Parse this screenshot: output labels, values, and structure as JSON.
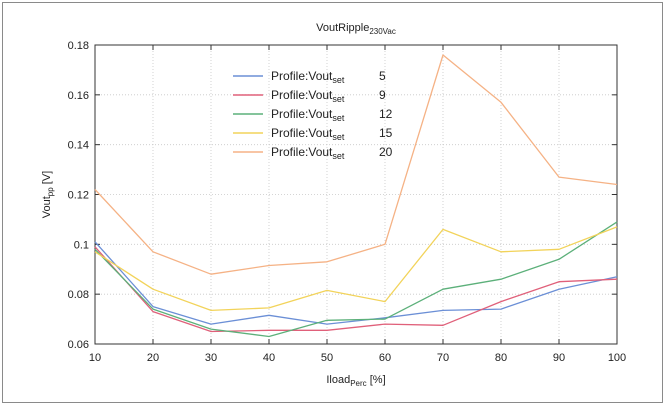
{
  "chart_data": {
    "type": "line",
    "title": {
      "main": "VoutRipple",
      "sub": "230Vac"
    },
    "xlabel": {
      "main": "Iload",
      "sub": "Perc",
      "suffix": " [%]"
    },
    "ylabel": {
      "main": "Vout",
      "sub": "pp",
      "suffix": " [V]"
    },
    "xlim": [
      10,
      100
    ],
    "ylim": [
      0.06,
      0.18
    ],
    "x": [
      10,
      20,
      30,
      40,
      50,
      60,
      70,
      80,
      90,
      100
    ],
    "x_ticks": [
      "10",
      "20",
      "30",
      "40",
      "50",
      "60",
      "70",
      "80",
      "90",
      "100"
    ],
    "y_ticks": [
      0.06,
      0.08,
      0.1,
      0.12,
      0.14,
      0.16,
      0.18
    ],
    "y_tick_labels": [
      "0.06",
      "0.08",
      "0.1",
      "0.12",
      "0.14",
      "0.16",
      "0.18"
    ],
    "grid": true,
    "legend_position": "top-center",
    "legend_label": {
      "main": "Profile:Vout",
      "sub": "set"
    },
    "series": [
      {
        "name": "5",
        "color": "#6b8fd6",
        "values": [
          0.101,
          0.075,
          0.068,
          0.0715,
          0.068,
          0.0705,
          0.0735,
          0.074,
          0.082,
          0.087
        ]
      },
      {
        "name": "9",
        "color": "#e0607a",
        "values": [
          0.099,
          0.073,
          0.065,
          0.0655,
          0.0655,
          0.068,
          0.0675,
          0.077,
          0.085,
          0.086
        ]
      },
      {
        "name": "12",
        "color": "#5cb07a",
        "values": [
          0.098,
          0.074,
          0.066,
          0.063,
          0.0695,
          0.07,
          0.082,
          0.086,
          0.094,
          0.109
        ]
      },
      {
        "name": "15",
        "color": "#f2d35a",
        "values": [
          0.097,
          0.082,
          0.0735,
          0.0745,
          0.0815,
          0.077,
          0.106,
          0.097,
          0.098,
          0.107
        ]
      },
      {
        "name": "20",
        "color": "#f5b285",
        "values": [
          0.122,
          0.097,
          0.088,
          0.0915,
          0.093,
          0.1,
          0.176,
          0.157,
          0.127,
          0.124
        ]
      }
    ]
  }
}
